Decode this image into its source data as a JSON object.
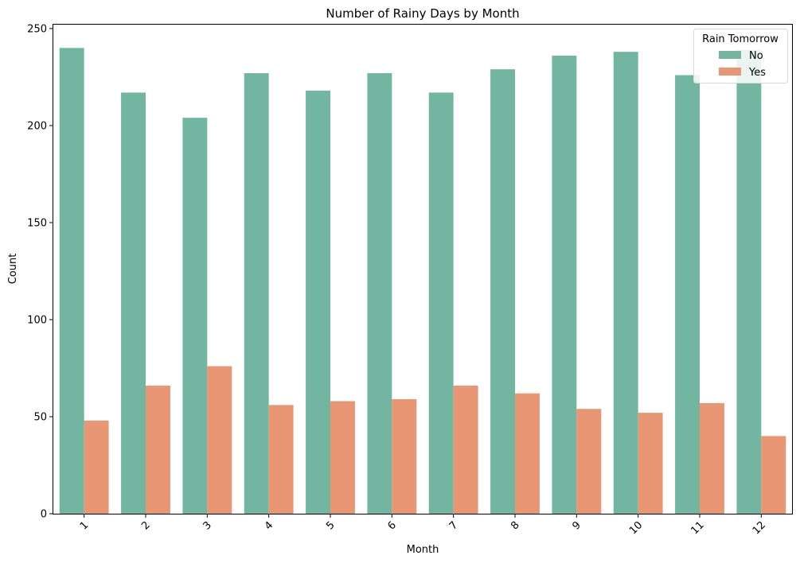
{
  "chart_data": {
    "type": "bar",
    "title": "Number of Rainy Days by Month",
    "xlabel": "Month",
    "ylabel": "Count",
    "categories": [
      "1",
      "2",
      "3",
      "4",
      "5",
      "6",
      "7",
      "8",
      "9",
      "10",
      "11",
      "12"
    ],
    "ylim": [
      0,
      252
    ],
    "yticks": [
      0,
      50,
      100,
      150,
      200,
      250
    ],
    "xtick_rotation": 45,
    "grid": false,
    "legend": {
      "title": "Rain Tomorrow",
      "placement": "top-right"
    },
    "series": [
      {
        "name": "No",
        "color": "#72b6a1",
        "values": [
          240,
          217,
          204,
          227,
          218,
          227,
          217,
          229,
          236,
          238,
          226,
          239
        ]
      },
      {
        "name": "Yes",
        "color": "#e99675",
        "values": [
          48,
          66,
          76,
          56,
          58,
          59,
          66,
          62,
          54,
          52,
          57,
          40
        ]
      }
    ]
  }
}
